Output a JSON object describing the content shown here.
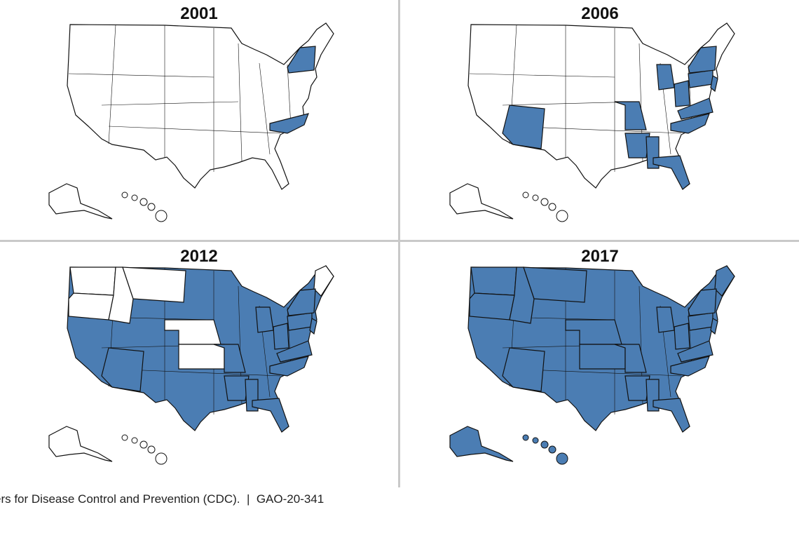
{
  "colors": {
    "shaded": "#4b7db3",
    "unshaded": "#ffffff",
    "border": "#111111"
  },
  "panels": [
    {
      "year": "2001",
      "shaded_states": [
        "NY",
        "NC"
      ]
    },
    {
      "year": "2006",
      "shaded_states": [
        "AZ",
        "MO",
        "AR",
        "MS",
        "FL",
        "MI",
        "OH",
        "PA",
        "NY",
        "NJ",
        "VA",
        "NC"
      ]
    },
    {
      "year": "2012",
      "all_shaded_except": [
        "WA",
        "OR",
        "ID",
        "MT",
        "NE",
        "KS",
        "ME",
        "AK",
        "HI"
      ]
    },
    {
      "year": "2017",
      "all_shaded_except": []
    }
  ],
  "footer": "ers for Disease Control and Prevention (CDC).  |  GAO-20-341"
}
